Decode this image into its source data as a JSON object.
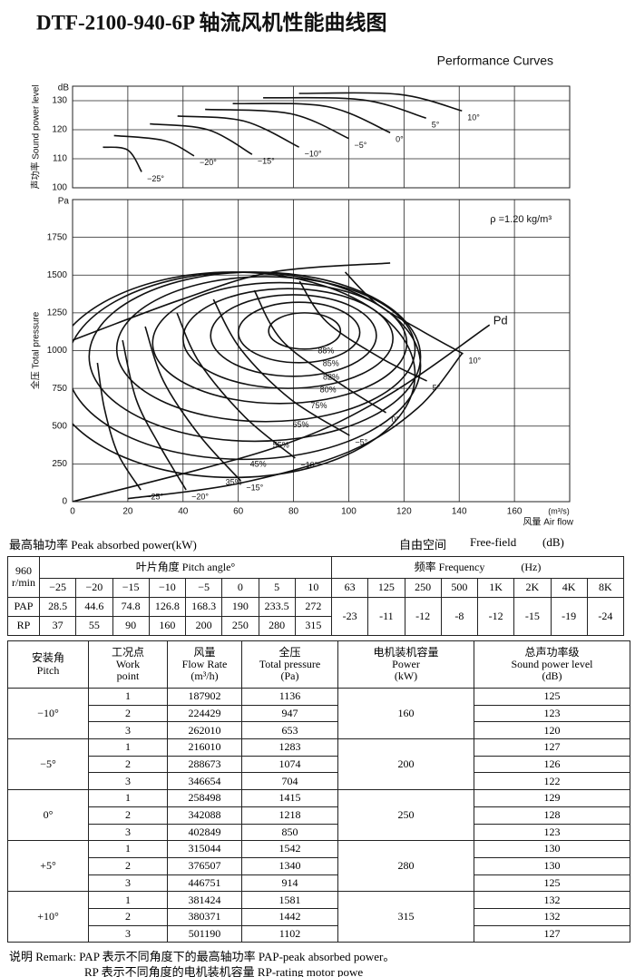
{
  "header": {
    "title": "DTF-2100-940-6P 轴流风机性能曲线图",
    "subtitle": "Performance Curves"
  },
  "sound_chart": {
    "type": "line",
    "y_label": "声功率 Sound power level",
    "y_unit": "dB",
    "xlim": [
      0,
      180
    ],
    "ylim": [
      100,
      135
    ],
    "xticks": [
      0,
      20,
      40,
      60,
      80,
      100,
      120,
      140,
      160
    ],
    "yticks": [
      100,
      110,
      120,
      130
    ],
    "series": [
      {
        "name": "−25°",
        "x": [
          11,
          20,
          25
        ],
        "values": [
          114,
          113,
          105.5
        ]
      },
      {
        "name": "−20°",
        "x": [
          15,
          33,
          44
        ],
        "values": [
          118,
          116.3,
          111
        ]
      },
      {
        "name": "−15°",
        "x": [
          28,
          49,
          65
        ],
        "values": [
          122,
          120,
          111.5
        ]
      },
      {
        "name": "−10°",
        "x": [
          38,
          62,
          82
        ],
        "values": [
          124.7,
          123,
          114
        ]
      },
      {
        "name": "−5°",
        "x": [
          48,
          79,
          100
        ],
        "values": [
          127,
          125.5,
          117
        ]
      },
      {
        "name": "0°",
        "x": [
          58,
          92,
          115
        ],
        "values": [
          129,
          128,
          119
        ]
      },
      {
        "name": "5°",
        "x": [
          69,
          105,
          128
        ],
        "values": [
          131,
          130.3,
          124
        ]
      },
      {
        "name": "10°",
        "x": [
          82,
          118,
          141
        ],
        "values": [
          132.5,
          132.2,
          126.5
        ]
      }
    ]
  },
  "pressure_chart": {
    "type": "line",
    "y_label": "全压 Total pressure",
    "y_unit": "Pa",
    "x_label": "风量 Air flow",
    "x_unit": "(m³/s)",
    "density": "ρ =1.20 kg/m³",
    "xlim": [
      0,
      180
    ],
    "ylim": [
      0,
      2000
    ],
    "xticks": [
      0,
      20,
      40,
      60,
      80,
      100,
      120,
      140,
      160
    ],
    "yticks": [
      0,
      250,
      500,
      750,
      1000,
      1250,
      1500,
      1750
    ],
    "series": [
      {
        "name": "−25°",
        "x": [
          9,
          11.5,
          16.4,
          24.7
        ],
        "values": [
          919,
          619,
          318,
          78
        ]
      },
      {
        "name": "−20°",
        "x": [
          18.1,
          23,
          31.3,
          41.1
        ],
        "values": [
          1069,
          679,
          378,
          78
        ]
      },
      {
        "name": "−15°",
        "x": [
          26.3,
          32.9,
          46,
          60.9
        ],
        "values": [
          1159,
          799,
          438,
          138
        ]
      },
      {
        "name": "−10°",
        "x": [
          37.8,
          46,
          62.5,
          80.6
        ],
        "values": [
          1249,
          919,
          559,
          288
        ]
      },
      {
        "name": "−5°",
        "x": [
          51,
          60.9,
          78.9,
          100.3
        ],
        "values": [
          1339,
          1009,
          679,
          438
        ]
      },
      {
        "name": "0°",
        "x": [
          65.8,
          75.7,
          95.4,
          113.5
        ],
        "values": [
          1399,
          1069,
          799,
          589
        ]
      },
      {
        "name": "5°",
        "x": [
          82.2,
          92.1,
          111.8,
          128.3
        ],
        "values": [
          1459,
          1189,
          949,
          799
        ]
      },
      {
        "name": "10°",
        "x": [
          98.7,
          110.2,
          126.6,
          141.4
        ],
        "values": [
          1520,
          1309,
          1129,
          979
        ]
      }
    ],
    "envelope": {
      "x": [
        0,
        39.5,
        72.4,
        115
      ],
      "values": [
        1069,
        1339,
        1520,
        1580
      ]
    },
    "pd": {
      "name": "Pd",
      "x": [
        0,
        72,
        112,
        151
      ],
      "values": [
        0,
        350,
        680,
        1170
      ]
    },
    "limit": {
      "x": [
        20,
        60,
        100,
        125,
        141
      ],
      "values": [
        20,
        120,
        330,
        620,
        980
      ]
    },
    "efficiency": [
      {
        "label": "88%",
        "cx": 84,
        "cy": 1130,
        "rx": 13,
        "ry": 120
      },
      {
        "label": "85%",
        "cx": 82,
        "cy": 1120,
        "rx": 22,
        "ry": 200
      },
      {
        "label": "82%",
        "cx": 80,
        "cy": 1100,
        "rx": 30,
        "ry": 270
      },
      {
        "label": "80%",
        "cx": 78,
        "cy": 1080,
        "rx": 38,
        "ry": 330
      },
      {
        "label": "75%",
        "cx": 75,
        "cy": 1050,
        "rx": 46,
        "ry": 400
      },
      {
        "label": "65%",
        "cx": 70,
        "cy": 1010,
        "rx": 54,
        "ry": 480
      },
      {
        "label": "55%",
        "cx": 66,
        "cy": 960,
        "rx": 60,
        "ry": 560
      },
      {
        "label": "45%",
        "cx": 62,
        "cy": 900,
        "rx": 64,
        "ry": 620
      },
      {
        "label": "35%",
        "cx": 58,
        "cy": 840,
        "rx": 66,
        "ry": 680
      }
    ]
  },
  "peak_table": {
    "caption": "最高轴功率 Peak absorbed power(kW)",
    "sound_caption": [
      "自由空间",
      "Free-field",
      "(dB)"
    ],
    "speed": "960 r/min",
    "pitch_header": "叶片角度 Pitch angle°",
    "pitches": [
      "−25",
      "−20",
      "−15",
      "−10",
      "−5",
      "0",
      "5",
      "10"
    ],
    "freq_header": "频率 Frequency",
    "freq_unit": "(Hz)",
    "freqs": [
      "63",
      "125",
      "250",
      "500",
      "1K",
      "2K",
      "4K",
      "8K"
    ],
    "rows": [
      {
        "label": "PAP",
        "values": [
          28.5,
          44.6,
          74.8,
          126.8,
          168.3,
          190,
          233.5,
          272
        ]
      },
      {
        "label": "RP",
        "values": [
          37,
          55,
          90,
          160,
          200,
          250,
          280,
          315
        ]
      }
    ],
    "sound": [
      -23,
      -11,
      -12,
      -8,
      -12,
      -15,
      -19,
      -24
    ]
  },
  "work_table": {
    "headers": [
      [
        "安装角",
        "Pitch"
      ],
      [
        "工况点",
        "Work",
        "point"
      ],
      [
        "风量",
        "Flow Rate",
        "(m³/h)"
      ],
      [
        "全压",
        "Total pressure",
        "(Pa)"
      ],
      [
        "电机装机容量",
        "Power",
        "(kW)"
      ],
      [
        "总声功率级",
        "Sound power level",
        "(dB)"
      ]
    ],
    "groups": [
      {
        "pitch": "−10°",
        "power": 160,
        "rows": [
          [
            1,
            187902,
            1136,
            125
          ],
          [
            2,
            224429,
            947,
            123
          ],
          [
            3,
            262010,
            653,
            120
          ]
        ]
      },
      {
        "pitch": "−5°",
        "power": 200,
        "rows": [
          [
            1,
            216010,
            1283,
            127
          ],
          [
            2,
            288673,
            1074,
            126
          ],
          [
            3,
            346654,
            704,
            122
          ]
        ]
      },
      {
        "pitch": "0°",
        "power": 250,
        "rows": [
          [
            1,
            258498,
            1415,
            129
          ],
          [
            2,
            342088,
            1218,
            128
          ],
          [
            3,
            402849,
            850,
            123
          ]
        ]
      },
      {
        "pitch": "+5°",
        "power": 280,
        "rows": [
          [
            1,
            315044,
            1542,
            130
          ],
          [
            2,
            376507,
            1340,
            130
          ],
          [
            3,
            446751,
            914,
            125
          ]
        ]
      },
      {
        "pitch": "+10°",
        "power": 315,
        "rows": [
          [
            1,
            381424,
            1581,
            132
          ],
          [
            2,
            380371,
            1442,
            132
          ],
          [
            3,
            501190,
            1102,
            127
          ]
        ]
      }
    ]
  },
  "remark": [
    "说明 Remark: PAP 表示不同角度下的最高轴功率 PAP-peak absorbed power。",
    "RP 表示不同角度的电机装机容量 RP-rating motor powe"
  ]
}
